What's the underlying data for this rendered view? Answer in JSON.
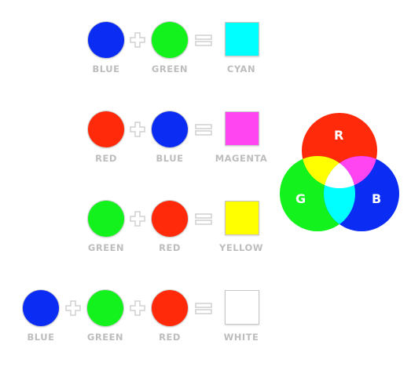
{
  "colors": {
    "blue": "#0b2cf2",
    "green": "#13f21c",
    "red": "#ff2a0a",
    "cyan": "#00ffff",
    "magenta": "#ff44f2",
    "yellow": "#ffff00",
    "white": "#ffffff",
    "label_gray": "#bdbdbd",
    "operator_gray": "#d0d0d0"
  },
  "rows": [
    {
      "inputs": [
        "BLUE",
        "GREEN"
      ],
      "result": "CYAN"
    },
    {
      "inputs": [
        "RED",
        "BLUE"
      ],
      "result": "MAGENTA"
    },
    {
      "inputs": [
        "GREEN",
        "RED"
      ],
      "result": "YELLOW"
    },
    {
      "inputs": [
        "BLUE",
        "GREEN",
        "RED"
      ],
      "result": "WHITE"
    }
  ],
  "venn": {
    "r": "R",
    "g": "G",
    "b": "B"
  }
}
